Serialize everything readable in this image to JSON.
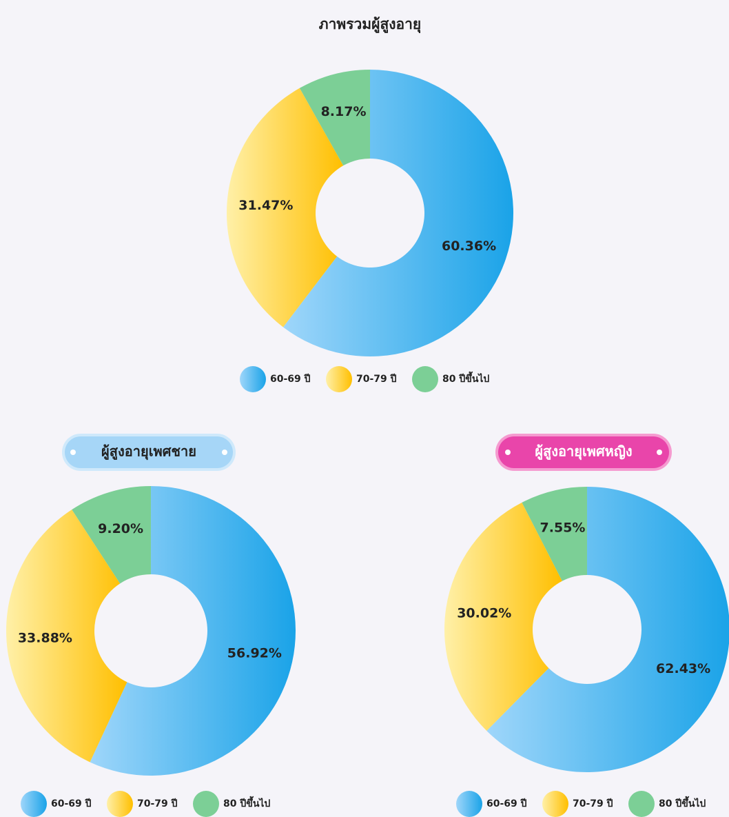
{
  "chart_data": [
    {
      "type": "donut",
      "title": "ภาพรวมผู้สูงอายุ",
      "categories": [
        "60-69 ปี",
        "70-79 ปี",
        "80 ปีขึ้นไป"
      ],
      "values": [
        60.36,
        31.47,
        8.17
      ],
      "value_labels": [
        "60.36%",
        "31.47%",
        "8.17%"
      ],
      "colors": [
        "#1aa3e8",
        "#ffbf00",
        "#7ccf96"
      ]
    },
    {
      "type": "donut",
      "title": "ผู้สูงอายุเพศชาย",
      "categories": [
        "60-69 ปี",
        "70-79 ปี",
        "80 ปีขึ้นไป"
      ],
      "values": [
        56.92,
        33.88,
        9.2
      ],
      "value_labels": [
        "56.92%",
        "33.88%",
        "9.20%"
      ],
      "colors": [
        "#1aa3e8",
        "#ffbf00",
        "#7ccf96"
      ]
    },
    {
      "type": "donut",
      "title": "ผู้สูงอายุเพศหญิง",
      "categories": [
        "60-69 ปี",
        "70-79 ปี",
        "80 ปีขึ้นไป"
      ],
      "values": [
        62.43,
        30.02,
        7.55
      ],
      "value_labels": [
        "62.43%",
        "30.02%",
        "7.55%"
      ],
      "colors": [
        "#1aa3e8",
        "#ffbf00",
        "#7ccf96"
      ]
    }
  ]
}
